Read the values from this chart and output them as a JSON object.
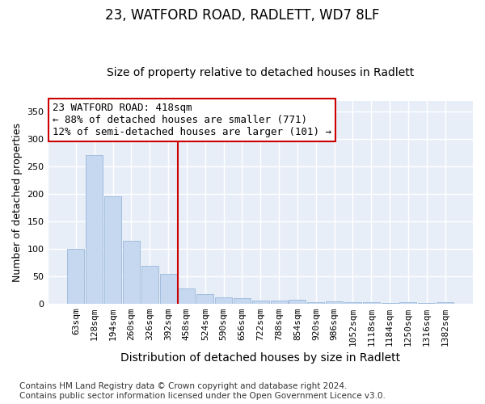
{
  "title1": "23, WATFORD ROAD, RADLETT, WD7 8LF",
  "title2": "Size of property relative to detached houses in Radlett",
  "xlabel": "Distribution of detached houses by size in Radlett",
  "ylabel": "Number of detached properties",
  "categories": [
    "63sqm",
    "128sqm",
    "194sqm",
    "260sqm",
    "326sqm",
    "392sqm",
    "458sqm",
    "524sqm",
    "590sqm",
    "656sqm",
    "722sqm",
    "788sqm",
    "854sqm",
    "920sqm",
    "986sqm",
    "1052sqm",
    "1118sqm",
    "1184sqm",
    "1250sqm",
    "1316sqm",
    "1382sqm"
  ],
  "values": [
    100,
    271,
    195,
    115,
    68,
    54,
    28,
    17,
    11,
    10,
    5,
    5,
    6,
    2,
    4,
    2,
    2,
    1,
    3,
    1,
    3
  ],
  "bar_color": "#c5d8f0",
  "bar_edge_color": "#9ab8d8",
  "fig_background": "#ffffff",
  "ax_background": "#e8eef8",
  "grid_color": "#ffffff",
  "vline_x": 5.5,
  "vline_color": "#cc0000",
  "annotation_line1": "23 WATFORD ROAD: 418sqm",
  "annotation_line2": "← 88% of detached houses are smaller (771)",
  "annotation_line3": "12% of semi-detached houses are larger (101) →",
  "annotation_box_color": "#ffffff",
  "annotation_box_edge": "#cc0000",
  "ylim": [
    0,
    370
  ],
  "yticks": [
    0,
    50,
    100,
    150,
    200,
    250,
    300,
    350
  ],
  "footnote": "Contains HM Land Registry data © Crown copyright and database right 2024.\nContains public sector information licensed under the Open Government Licence v3.0.",
  "title1_fontsize": 12,
  "title2_fontsize": 10,
  "xlabel_fontsize": 10,
  "ylabel_fontsize": 9,
  "tick_fontsize": 8,
  "annotation_fontsize": 9,
  "footnote_fontsize": 7.5
}
